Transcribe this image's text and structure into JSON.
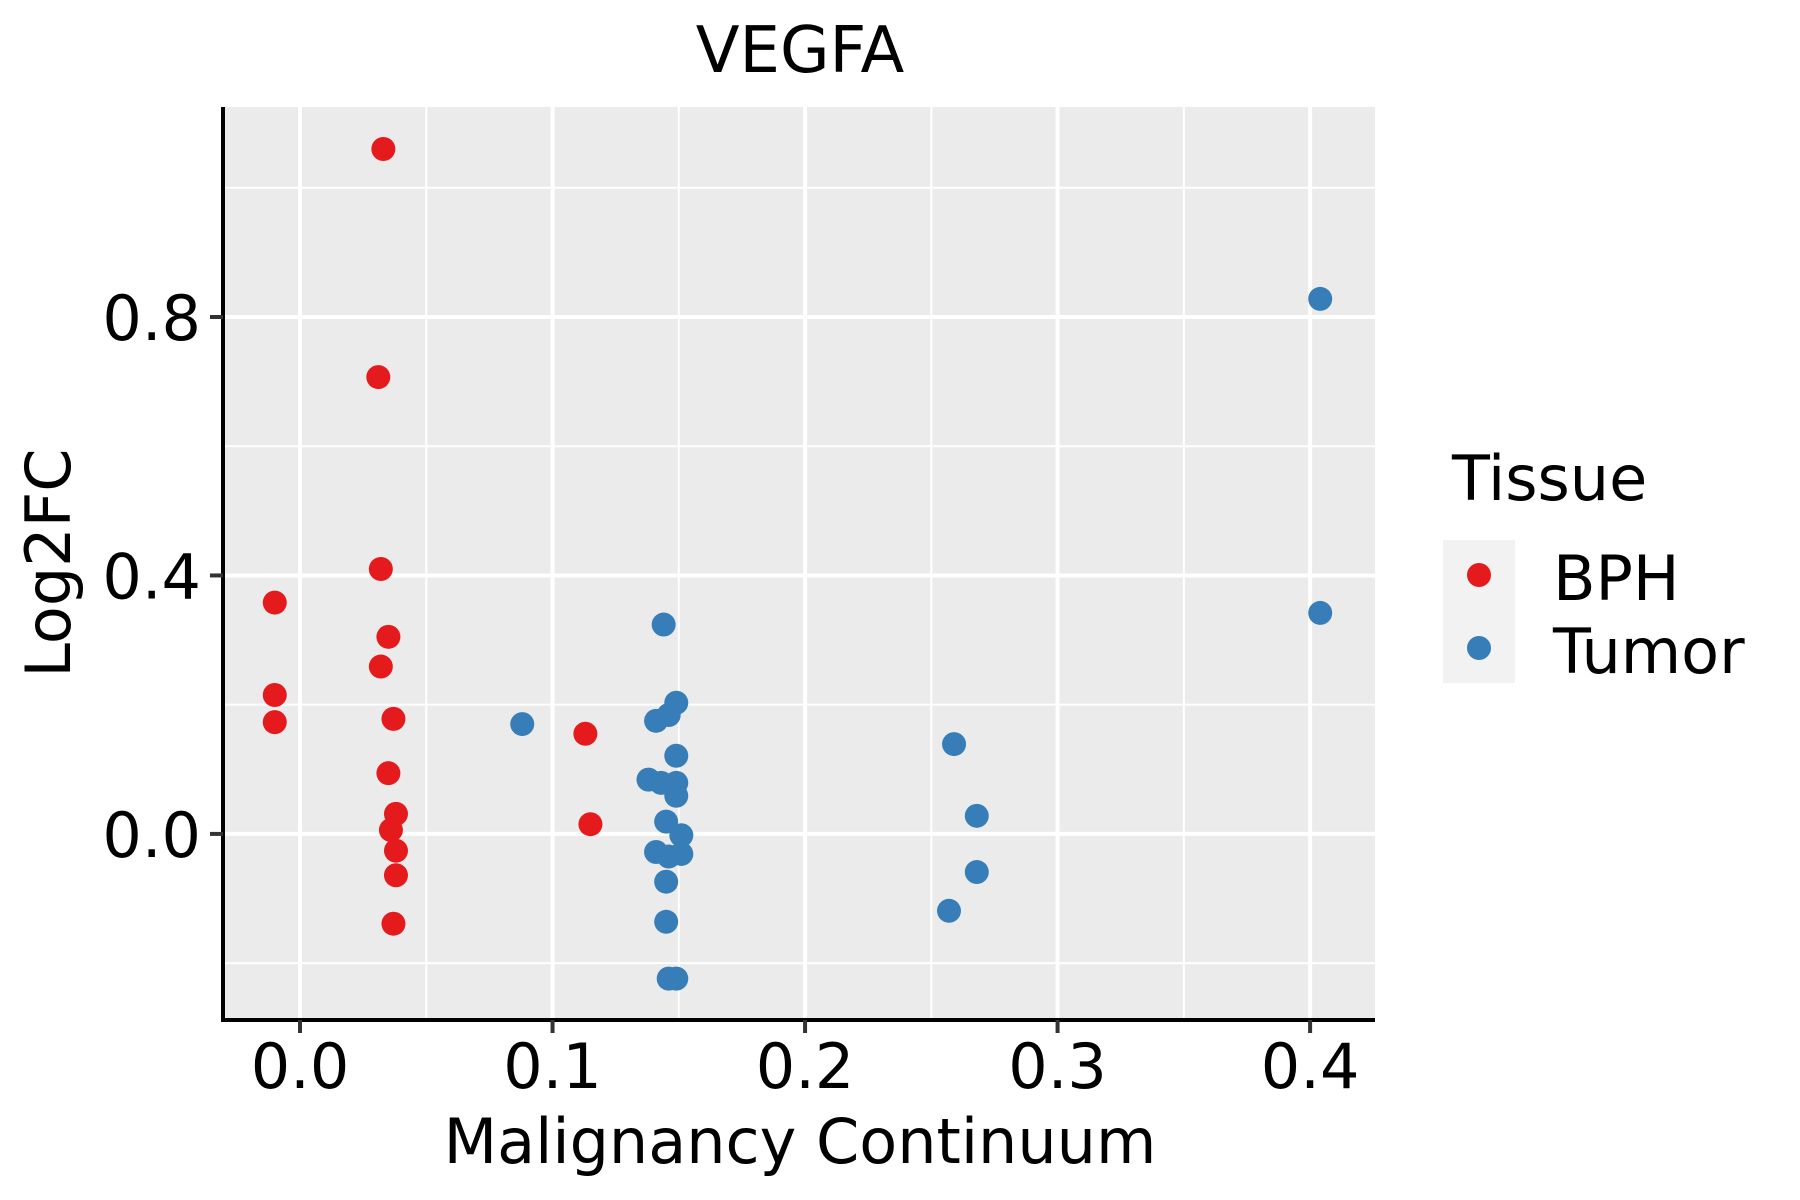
{
  "chart_data": {
    "type": "scatter",
    "title": "VEGFA",
    "xlabel": "Malignancy Continuum",
    "ylabel": "Log2FC",
    "xlim": [
      -0.0305,
      0.4257
    ],
    "ylim": [
      -0.288,
      1.125
    ],
    "x_ticks": [
      0.0,
      0.1,
      0.2,
      0.3,
      0.4
    ],
    "x_tick_labels": [
      "0.0",
      "0.1",
      "0.2",
      "0.3",
      "0.4"
    ],
    "x_minor_ticks": [
      0.05,
      0.15,
      0.25,
      0.35
    ],
    "y_ticks": [
      0.0,
      0.4,
      0.8
    ],
    "y_tick_labels": [
      "0.0",
      "0.4",
      "0.8"
    ],
    "y_minor_ticks": [
      -0.2,
      0.2,
      0.6,
      1.0
    ],
    "grid": true,
    "panel_background": "#EBEBEB",
    "legend": {
      "title": "Tissue",
      "position": "right",
      "entries": [
        {
          "label": "BPH",
          "color": "#E41A1C"
        },
        {
          "label": "Tumor",
          "color": "#377EB8"
        }
      ]
    },
    "series": [
      {
        "name": "BPH",
        "color": "#E41A1C",
        "points": [
          {
            "x": 0.033,
            "y": 1.06
          },
          {
            "x": 0.031,
            "y": 0.707
          },
          {
            "x": 0.032,
            "y": 0.41
          },
          {
            "x": -0.01,
            "y": 0.358
          },
          {
            "x": 0.035,
            "y": 0.305
          },
          {
            "x": 0.032,
            "y": 0.259
          },
          {
            "x": -0.01,
            "y": 0.215
          },
          {
            "x": -0.01,
            "y": 0.173
          },
          {
            "x": 0.037,
            "y": 0.178
          },
          {
            "x": 0.035,
            "y": 0.094
          },
          {
            "x": 0.038,
            "y": 0.031
          },
          {
            "x": 0.036,
            "y": 0.006
          },
          {
            "x": 0.038,
            "y": -0.026
          },
          {
            "x": 0.038,
            "y": -0.064
          },
          {
            "x": 0.037,
            "y": -0.139
          },
          {
            "x": 0.113,
            "y": 0.155
          },
          {
            "x": 0.115,
            "y": 0.015
          }
        ]
      },
      {
        "name": "Tumor",
        "color": "#377EB8",
        "points": [
          {
            "x": 0.088,
            "y": 0.17
          },
          {
            "x": 0.144,
            "y": 0.324
          },
          {
            "x": 0.149,
            "y": 0.203
          },
          {
            "x": 0.146,
            "y": 0.184
          },
          {
            "x": 0.141,
            "y": 0.175
          },
          {
            "x": 0.149,
            "y": 0.121
          },
          {
            "x": 0.138,
            "y": 0.084
          },
          {
            "x": 0.143,
            "y": 0.079
          },
          {
            "x": 0.149,
            "y": 0.079
          },
          {
            "x": 0.149,
            "y": 0.059
          },
          {
            "x": 0.145,
            "y": 0.019
          },
          {
            "x": 0.151,
            "y": -0.002
          },
          {
            "x": 0.141,
            "y": -0.028
          },
          {
            "x": 0.146,
            "y": -0.035
          },
          {
            "x": 0.151,
            "y": -0.031
          },
          {
            "x": 0.145,
            "y": -0.074
          },
          {
            "x": 0.145,
            "y": -0.136
          },
          {
            "x": 0.146,
            "y": -0.224
          },
          {
            "x": 0.149,
            "y": -0.224
          },
          {
            "x": 0.259,
            "y": 0.139
          },
          {
            "x": 0.268,
            "y": 0.028
          },
          {
            "x": 0.268,
            "y": -0.059
          },
          {
            "x": 0.257,
            "y": -0.119
          },
          {
            "x": 0.404,
            "y": 0.828
          },
          {
            "x": 0.404,
            "y": 0.342
          }
        ]
      }
    ]
  }
}
